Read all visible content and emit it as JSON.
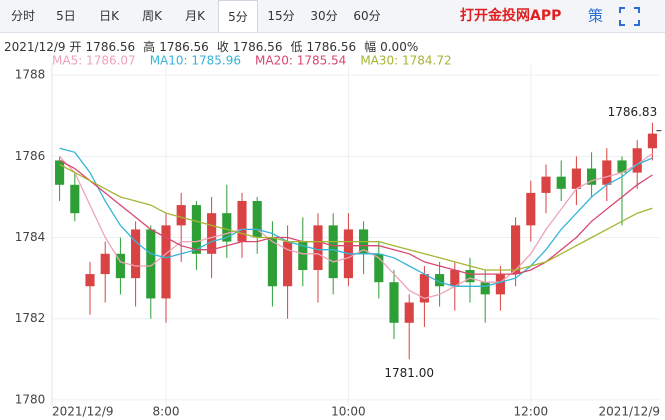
{
  "header": {
    "tabs": [
      "分时",
      "5日",
      "日K",
      "周K",
      "月K",
      "5分",
      "15分",
      "30分",
      "60分"
    ],
    "active_tab": 5,
    "promo": "打开金投网APP",
    "strategy": "策"
  },
  "info": {
    "date": "2021/12/9",
    "items": [
      {
        "label": "开",
        "value": "1786.56"
      },
      {
        "label": "高",
        "value": "1786.56"
      },
      {
        "label": "收",
        "value": "1786.56"
      },
      {
        "label": "低",
        "value": "1786.56"
      },
      {
        "label": "幅",
        "value": "0.00%"
      }
    ]
  },
  "chart_data": {
    "type": "candlestick",
    "categories": [
      "2021/12/9",
      null,
      null,
      null,
      null,
      null,
      null,
      "8:00",
      null,
      null,
      null,
      null,
      null,
      null,
      null,
      null,
      null,
      null,
      null,
      "10:00",
      null,
      null,
      null,
      null,
      null,
      null,
      null,
      null,
      null,
      null,
      null,
      "12:00",
      null,
      null,
      null,
      null,
      null,
      null,
      null,
      "2021/12/9"
    ],
    "candles": [
      [
        1785.9,
        1786.0,
        1784.9,
        1785.3
      ],
      [
        1785.3,
        1785.6,
        1784.4,
        1784.6
      ],
      [
        1782.8,
        1783.4,
        1782.1,
        1783.1
      ],
      [
        1783.1,
        1783.9,
        1782.4,
        1783.6
      ],
      [
        1783.6,
        1784.0,
        1782.6,
        1783.0
      ],
      [
        1783.0,
        1784.4,
        1782.3,
        1784.2
      ],
      [
        1784.2,
        1784.3,
        1782.0,
        1782.5
      ],
      [
        1782.5,
        1784.6,
        1781.9,
        1784.3
      ],
      [
        1784.3,
        1785.1,
        1783.4,
        1784.8
      ],
      [
        1784.8,
        1784.9,
        1783.2,
        1783.6
      ],
      [
        1783.6,
        1785.0,
        1783.0,
        1784.6
      ],
      [
        1784.6,
        1785.3,
        1783.5,
        1783.9
      ],
      [
        1783.9,
        1785.1,
        1783.5,
        1784.9
      ],
      [
        1784.9,
        1785.0,
        1783.6,
        1784.0
      ],
      [
        1784.0,
        1784.4,
        1782.3,
        1782.8
      ],
      [
        1782.8,
        1784.3,
        1782.0,
        1783.9
      ],
      [
        1783.9,
        1784.5,
        1782.8,
        1783.2
      ],
      [
        1783.2,
        1784.6,
        1782.4,
        1784.3
      ],
      [
        1784.3,
        1784.6,
        1782.6,
        1783.0
      ],
      [
        1783.0,
        1784.6,
        1782.8,
        1784.2
      ],
      [
        1784.2,
        1784.4,
        1783.1,
        1783.6
      ],
      [
        1783.6,
        1783.9,
        1782.5,
        1782.9
      ],
      [
        1782.9,
        1783.2,
        1781.5,
        1781.9
      ],
      [
        1781.9,
        1782.6,
        1781.0,
        1782.4
      ],
      [
        1782.4,
        1783.3,
        1781.8,
        1783.1
      ],
      [
        1783.1,
        1783.4,
        1782.3,
        1782.8
      ],
      [
        1782.8,
        1783.4,
        1782.2,
        1783.2
      ],
      [
        1783.2,
        1783.5,
        1782.4,
        1782.9
      ],
      [
        1782.9,
        1783.2,
        1781.9,
        1782.6
      ],
      [
        1782.6,
        1783.3,
        1782.2,
        1783.1
      ],
      [
        1783.1,
        1784.5,
        1782.8,
        1784.3
      ],
      [
        1784.3,
        1785.4,
        1783.9,
        1785.1
      ],
      [
        1785.1,
        1785.8,
        1784.6,
        1785.5
      ],
      [
        1785.5,
        1785.9,
        1784.9,
        1785.2
      ],
      [
        1785.2,
        1786.0,
        1784.8,
        1785.7
      ],
      [
        1785.7,
        1786.1,
        1785.0,
        1785.3
      ],
      [
        1785.3,
        1786.2,
        1784.9,
        1785.9
      ],
      [
        1785.9,
        1786.0,
        1784.3,
        1785.6
      ],
      [
        1785.6,
        1786.4,
        1785.2,
        1786.2
      ],
      [
        1786.2,
        1786.83,
        1785.9,
        1786.56
      ]
    ],
    "up_color": "#d94343",
    "down_color": "#2e9e36",
    "series": [
      {
        "name": "MA5",
        "legend": "MA5: 1786.07",
        "color": "#eea3b8",
        "values": [
          1786.0,
          1785.6,
          1784.8,
          1784.0,
          1783.4,
          1783.3,
          1783.3,
          1783.6,
          1783.9,
          1783.9,
          1784.0,
          1784.1,
          1784.2,
          1784.2,
          1783.9,
          1783.7,
          1783.6,
          1783.6,
          1783.4,
          1783.5,
          1783.7,
          1783.5,
          1783.1,
          1782.7,
          1782.5,
          1782.6,
          1782.8,
          1783.0,
          1782.9,
          1782.9,
          1783.2,
          1783.6,
          1784.2,
          1784.7,
          1785.2,
          1785.4,
          1785.5,
          1785.6,
          1785.8,
          1786.07
        ]
      },
      {
        "name": "MA10",
        "legend": "MA10: 1785.96",
        "color": "#36b5d8",
        "values": [
          1786.2,
          1786.1,
          1785.6,
          1784.9,
          1784.3,
          1783.9,
          1783.6,
          1783.5,
          1783.6,
          1783.7,
          1783.9,
          1784.0,
          1784.2,
          1784.2,
          1784.1,
          1783.9,
          1783.8,
          1783.7,
          1783.7,
          1783.6,
          1783.6,
          1783.6,
          1783.5,
          1783.3,
          1783.1,
          1782.9,
          1782.8,
          1782.8,
          1782.8,
          1782.9,
          1783.0,
          1783.3,
          1783.7,
          1784.2,
          1784.6,
          1785.0,
          1785.3,
          1785.5,
          1785.8,
          1785.96
        ]
      },
      {
        "name": "MA20",
        "legend": "MA20: 1785.54",
        "color": "#d8486e",
        "values": [
          1785.9,
          1785.7,
          1785.4,
          1785.1,
          1784.8,
          1784.5,
          1784.2,
          1784.0,
          1783.8,
          1783.7,
          1783.7,
          1783.8,
          1783.9,
          1783.9,
          1784.0,
          1784.0,
          1783.9,
          1783.9,
          1783.8,
          1783.8,
          1783.8,
          1783.8,
          1783.7,
          1783.6,
          1783.4,
          1783.3,
          1783.2,
          1783.1,
          1783.1,
          1783.1,
          1783.1,
          1783.2,
          1783.4,
          1783.7,
          1784.0,
          1784.4,
          1784.7,
          1785.0,
          1785.3,
          1785.54
        ]
      },
      {
        "name": "MA30",
        "legend": "MA30: 1784.72",
        "color": "#a5b533",
        "values": [
          1785.8,
          1785.6,
          1785.4,
          1785.2,
          1785.0,
          1784.9,
          1784.8,
          1784.6,
          1784.5,
          1784.4,
          1784.3,
          1784.2,
          1784.1,
          1784.0,
          1784.0,
          1783.9,
          1783.9,
          1783.9,
          1783.9,
          1783.9,
          1783.9,
          1783.9,
          1783.8,
          1783.7,
          1783.6,
          1783.5,
          1783.4,
          1783.3,
          1783.2,
          1783.2,
          1783.2,
          1783.3,
          1783.4,
          1783.6,
          1783.8,
          1784.0,
          1784.2,
          1784.4,
          1784.6,
          1784.72
        ]
      }
    ],
    "ylim": [
      1779.85,
      1788.3
    ],
    "yticks": [
      1780,
      1782,
      1784,
      1786,
      1788
    ],
    "grid": true,
    "annotations": [
      {
        "text": "1786.83",
        "index": 39,
        "value": 1786.83
      },
      {
        "text": "1781.00",
        "index": 23,
        "value": 1781.0
      }
    ]
  }
}
